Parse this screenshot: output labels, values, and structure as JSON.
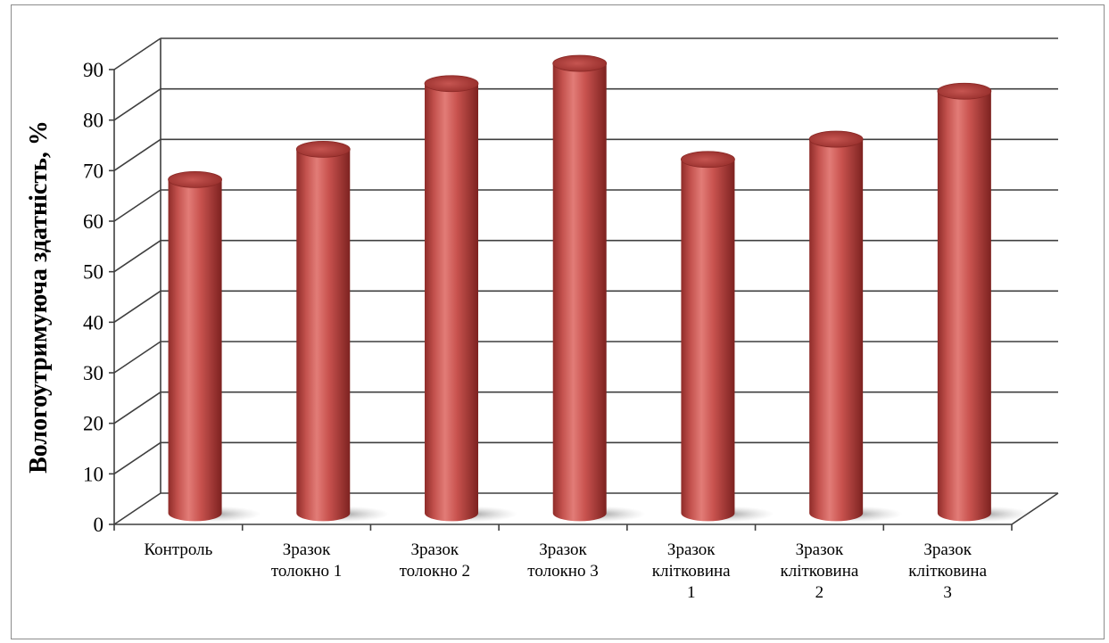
{
  "chart_data": {
    "type": "bar",
    "ylabel": "Вологоутримуюча здатність, %",
    "ylim": [
      0,
      90
    ],
    "yticks": [
      0,
      10,
      20,
      30,
      40,
      50,
      60,
      70,
      80,
      90
    ],
    "grid": true,
    "style": "3d-cylinder",
    "colors": {
      "bar": "#c0504d",
      "bar_dark": "#7a1f1d",
      "bar_light": "#e07a76",
      "grid": "#3f3f3f"
    },
    "categories": [
      [
        "Контроль"
      ],
      [
        "Зразок",
        "толокно 1"
      ],
      [
        "Зразок",
        "толокно 2"
      ],
      [
        "Зразок",
        "толокно 3"
      ],
      [
        "Зразок",
        "клітковина",
        "1"
      ],
      [
        "Зразок",
        "клітковина",
        "2"
      ],
      [
        "Зразок",
        "клітковина",
        "3"
      ]
    ],
    "values": [
      66,
      72,
      85,
      89,
      70,
      74,
      83.5
    ]
  }
}
